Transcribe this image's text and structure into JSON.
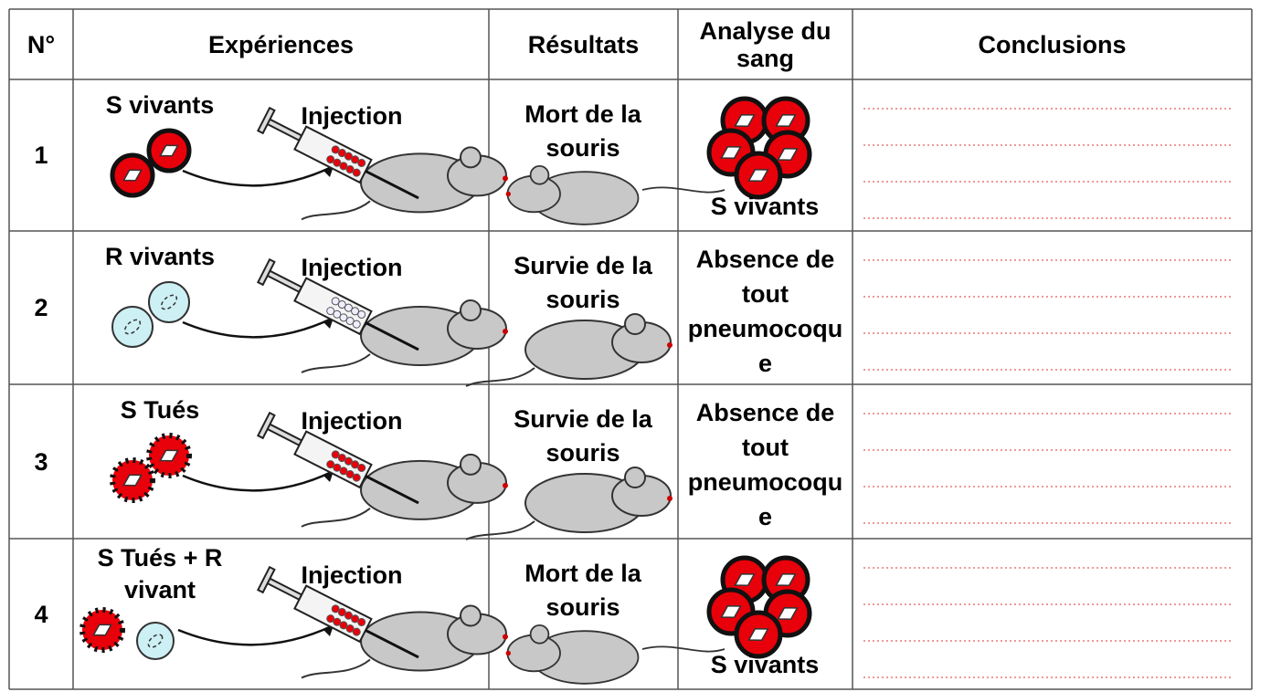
{
  "table": {
    "header": [
      "N°",
      "Expériences",
      "Résultats",
      "Analyse du sang",
      "Conclusions"
    ],
    "rows": [
      {
        "number": "1",
        "bacteria": "S vivants",
        "injection": "Injection",
        "result": "Mort de la souris",
        "analysis": "S vivants"
      },
      {
        "number": "2",
        "bacteria": "R vivants",
        "injection": "Injection",
        "result": "Survie de la souris",
        "analysis": "Absence de tout pneumocoque"
      },
      {
        "number": "3",
        "bacteria": "S Tués",
        "injection": "Injection",
        "result": "Survie de la souris",
        "analysis": "Absence de tout pneumocoque"
      },
      {
        "number": "4",
        "bacteria": "S Tués + R vivant",
        "injection": "Injection",
        "result": "Mort de la souris",
        "analysis": "S vivants"
      }
    ]
  }
}
